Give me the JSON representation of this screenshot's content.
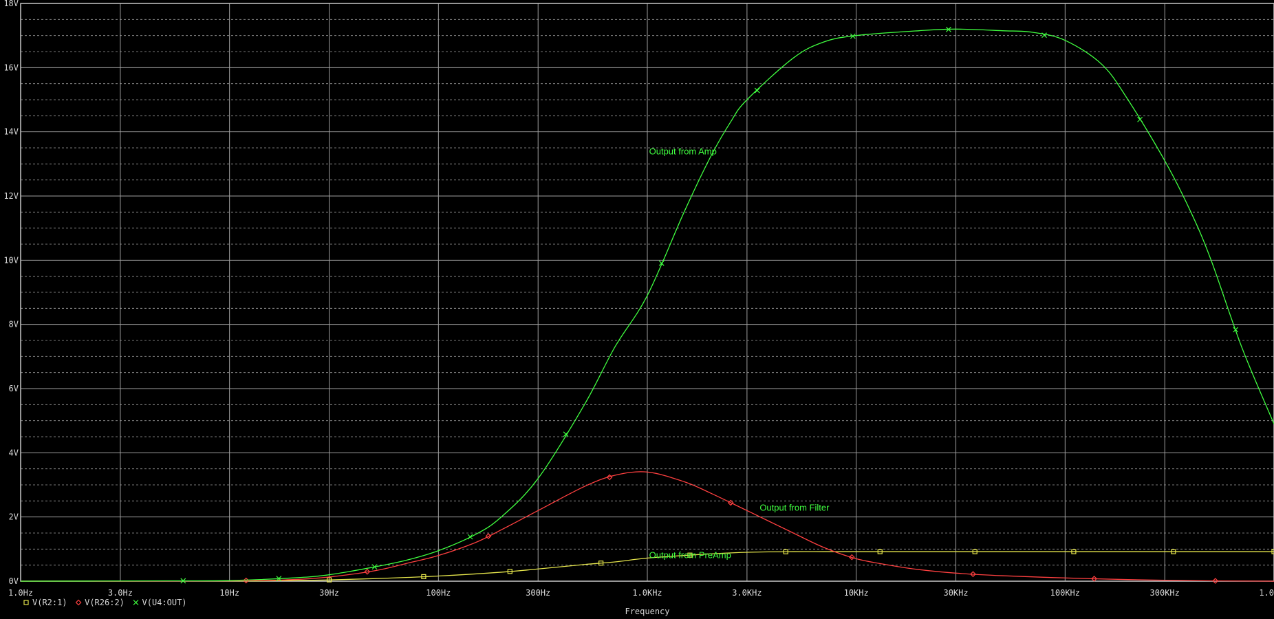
{
  "chart_data": {
    "type": "line",
    "x_scale": "log",
    "xlabel": "Frequency",
    "ylabel": "",
    "xlim": [
      1,
      1000000
    ],
    "ylim": [
      0,
      18
    ],
    "grid": true,
    "legend_placement": "bottom-left",
    "x_ticks": [
      {
        "value": 1,
        "label": "1.0Hz"
      },
      {
        "value": 3,
        "label": "3.0Hz"
      },
      {
        "value": 10,
        "label": "10Hz"
      },
      {
        "value": 30,
        "label": "30Hz"
      },
      {
        "value": 100,
        "label": "100Hz"
      },
      {
        "value": 300,
        "label": "300Hz"
      },
      {
        "value": 1000,
        "label": "1.0KHz"
      },
      {
        "value": 3000,
        "label": "3.0KHz"
      },
      {
        "value": 10000,
        "label": "10KHz"
      },
      {
        "value": 30000,
        "label": "30KHz"
      },
      {
        "value": 100000,
        "label": "100KHz"
      },
      {
        "value": 300000,
        "label": "300KHz"
      },
      {
        "value": 1000000,
        "label": "1.0MHz"
      }
    ],
    "y_ticks": [
      {
        "value": 0,
        "label": "0V"
      },
      {
        "value": 2,
        "label": "2V"
      },
      {
        "value": 4,
        "label": "4V"
      },
      {
        "value": 6,
        "label": "6V"
      },
      {
        "value": 8,
        "label": "8V"
      },
      {
        "value": 10,
        "label": "10V"
      },
      {
        "value": 12,
        "label": "12V"
      },
      {
        "value": 14,
        "label": "14V"
      },
      {
        "value": 16,
        "label": "16V"
      },
      {
        "value": 18,
        "label": "18V"
      }
    ],
    "series": [
      {
        "name": "V(R2:1)",
        "color": "#e6e64c",
        "marker": "square",
        "x": [
          1,
          10,
          20,
          30,
          50,
          100,
          200,
          300,
          500,
          700,
          1000,
          1500,
          2000,
          3000,
          5000,
          7000,
          10000,
          30000,
          100000,
          300000,
          1000000
        ],
        "y": [
          0,
          0.005,
          0.02,
          0.04,
          0.08,
          0.16,
          0.28,
          0.38,
          0.52,
          0.6,
          0.72,
          0.8,
          0.85,
          0.9,
          0.92,
          0.92,
          0.92,
          0.92,
          0.92,
          0.92,
          0.92
        ],
        "markers_x": [
          30,
          85,
          220,
          600,
          1600,
          4600,
          13000,
          37000,
          110000,
          330000,
          1000000
        ]
      },
      {
        "name": "V(R26:2)",
        "color": "#ff4040",
        "marker": "diamond",
        "x": [
          1,
          10,
          20,
          30,
          50,
          70,
          100,
          150,
          200,
          300,
          500,
          700,
          1000,
          1500,
          2000,
          3000,
          5000,
          7000,
          10000,
          15000,
          20000,
          30000,
          50000,
          100000,
          200000,
          300000,
          500000,
          1000000
        ],
        "y": [
          0,
          0.01,
          0.05,
          0.13,
          0.33,
          0.55,
          0.8,
          1.2,
          1.6,
          2.2,
          2.95,
          3.3,
          3.4,
          3.1,
          2.75,
          2.2,
          1.5,
          1.05,
          0.7,
          0.48,
          0.36,
          0.25,
          0.17,
          0.1,
          0.05,
          0.03,
          0.01,
          0
        ]
      },
      {
        "name": "V(U4:OUT)",
        "color": "#40ff40",
        "marker": "x",
        "x": [
          1,
          5,
          10,
          20,
          30,
          50,
          70,
          100,
          150,
          200,
          300,
          500,
          700,
          1000,
          1500,
          2000,
          2500,
          3000,
          5000,
          7000,
          10000,
          20000,
          30000,
          50000,
          70000,
          100000,
          150000,
          200000,
          300000,
          400000,
          500000,
          700000,
          1000000
        ],
        "y": [
          0,
          0.01,
          0.02,
          0.1,
          0.2,
          0.45,
          0.65,
          0.95,
          1.45,
          2.0,
          3.2,
          5.5,
          7.3,
          8.9,
          11.5,
          13.2,
          14.3,
          15.0,
          16.3,
          16.8,
          17.0,
          17.15,
          17.2,
          17.15,
          17.1,
          16.85,
          16.1,
          15.0,
          13.1,
          11.5,
          10.0,
          7.3,
          4.9
        ]
      }
    ],
    "annotations": [
      {
        "text": "Output from Amp",
        "x": 1020,
        "y": 13.3,
        "color": "#40ff40"
      },
      {
        "text": "Output from Filter",
        "x": 3450,
        "y": 2.2,
        "color": "#40ff40"
      },
      {
        "text": "Output from PreAmp",
        "x": 1020,
        "y": 0.72,
        "color": "#40ff40"
      }
    ]
  }
}
